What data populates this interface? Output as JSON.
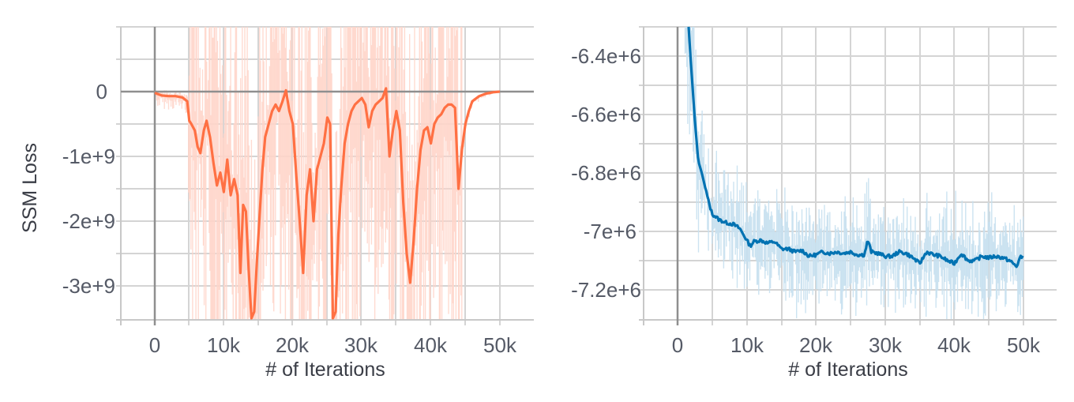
{
  "chart_data": [
    {
      "type": "line",
      "title": "",
      "xlabel": "# of Iterations",
      "ylabel": "SSM Loss",
      "xlim": [
        -5000,
        55000
      ],
      "ylim": [
        -3520000000.0,
        1000000000.0
      ],
      "x_ticks": [
        "0",
        "10k",
        "20k",
        "30k",
        "40k",
        "50k"
      ],
      "y_ticks": [
        "0",
        "-1e+9",
        "-2e+9",
        "-3e+9"
      ],
      "grid": true,
      "colors": {
        "smoothed": "#ff7043",
        "raw": "#ffd5c9"
      },
      "series": [
        {
          "name": "smoothed",
          "x_k": [
            0,
            1,
            2,
            3,
            4,
            4.7,
            5,
            5.3,
            5.8,
            6.2,
            6.6,
            7.1,
            7.5,
            8,
            8.5,
            9,
            9.5,
            10,
            10.5,
            11,
            11.5,
            12,
            12.4,
            12.8,
            13.2,
            13.6,
            14,
            14.4,
            14.8,
            15.2,
            15.6,
            16,
            16.5,
            17,
            17.5,
            18,
            18.5,
            19,
            19.5,
            20,
            20.5,
            21,
            21.5,
            22,
            22.5,
            23,
            23.5,
            24,
            24.5,
            25,
            25.4,
            25.8,
            26.2,
            26.6,
            27,
            27.5,
            28,
            28.5,
            29,
            29.5,
            30,
            30.5,
            31,
            31.5,
            32,
            32.5,
            33,
            33.5,
            34,
            34.5,
            35,
            35.5,
            36,
            36.5,
            37,
            37.5,
            38,
            38.5,
            39,
            39.5,
            40,
            40.5,
            41,
            41.5,
            42,
            42.5,
            43,
            43.5,
            44,
            44.5,
            45,
            45.5,
            46,
            47,
            48,
            49,
            50
          ],
          "y_e9": [
            -0.02,
            -0.06,
            -0.07,
            -0.07,
            -0.09,
            -0.15,
            -0.45,
            -0.5,
            -0.6,
            -0.85,
            -0.95,
            -0.6,
            -0.45,
            -0.7,
            -1.1,
            -1.45,
            -1.25,
            -1.55,
            -1.05,
            -1.6,
            -1.35,
            -1.6,
            -2.8,
            -1.75,
            -1.85,
            -2.75,
            -3.5,
            -3.4,
            -2.6,
            -1.9,
            -1.2,
            -0.7,
            -0.5,
            -0.3,
            -0.2,
            -0.3,
            -0.15,
            0.02,
            -0.3,
            -0.5,
            -1.3,
            -2.0,
            -2.8,
            -1.6,
            -1.2,
            -2.0,
            -1.2,
            -1.0,
            -0.8,
            -0.4,
            -0.5,
            -3.5,
            -3.4,
            -2.2,
            -1.5,
            -0.8,
            -0.5,
            -0.3,
            -0.2,
            -0.15,
            -0.1,
            -0.2,
            -0.55,
            -0.3,
            -0.2,
            -0.15,
            -0.1,
            0.05,
            -1.0,
            -0.6,
            -0.3,
            -0.6,
            -1.7,
            -2.5,
            -2.95,
            -2.3,
            -1.5,
            -0.9,
            -0.6,
            -0.55,
            -0.8,
            -0.5,
            -0.4,
            -0.35,
            -0.25,
            -0.2,
            -0.2,
            -0.25,
            -1.5,
            -0.9,
            -0.5,
            -0.3,
            -0.15,
            -0.07,
            -0.03,
            -0.01,
            0
          ]
        },
        {
          "name": "raw",
          "note": "highly noisy, spans full y-range between ~5k and ~44k iterations"
        }
      ]
    },
    {
      "type": "line",
      "title": "",
      "xlabel": "# of Iterations",
      "ylabel": "",
      "xlim": [
        -5000,
        55000
      ],
      "ylim": [
        -7303000.0,
        -6300000.0
      ],
      "x_ticks": [
        "0",
        "10k",
        "20k",
        "30k",
        "40k",
        "50k"
      ],
      "y_ticks": [
        "-6.4e+6",
        "-6.6e+6",
        "-6.8e+6",
        "-7e+6",
        "-7.2e+6"
      ],
      "grid": true,
      "colors": {
        "smoothed": "#0072b2",
        "raw": "#c6e0f0"
      },
      "series": [
        {
          "name": "smoothed",
          "x_k": [
            1.6,
            2.0,
            2.5,
            3.0,
            3.5,
            4.0,
            4.5,
            5,
            6,
            7,
            8,
            9,
            10,
            10.5,
            11,
            12,
            13,
            14,
            15,
            16,
            17,
            18,
            19,
            20,
            21,
            22,
            23,
            24,
            25,
            26,
            27,
            27.5,
            28,
            29,
            30,
            31,
            32,
            33,
            34,
            35,
            36,
            37,
            38,
            39,
            40,
            41,
            42,
            43,
            44,
            45,
            46,
            47,
            48,
            49,
            49.5,
            50
          ],
          "y_e6": [
            -6.3,
            -6.45,
            -6.62,
            -6.76,
            -6.8,
            -6.85,
            -6.9,
            -6.94,
            -6.96,
            -6.97,
            -6.975,
            -6.99,
            -7.03,
            -7.05,
            -7.035,
            -7.03,
            -7.04,
            -7.035,
            -7.06,
            -7.06,
            -7.07,
            -7.065,
            -7.085,
            -7.08,
            -7.07,
            -7.075,
            -7.07,
            -7.075,
            -7.07,
            -7.08,
            -7.08,
            -7.03,
            -7.07,
            -7.075,
            -7.085,
            -7.085,
            -7.07,
            -7.075,
            -7.09,
            -7.11,
            -7.07,
            -7.08,
            -7.085,
            -7.1,
            -7.11,
            -7.075,
            -7.1,
            -7.1,
            -7.085,
            -7.09,
            -7.085,
            -7.09,
            -7.1,
            -7.12,
            -7.09,
            -7.085
          ]
        },
        {
          "name": "raw",
          "note": "noisy band around smoothed curve, roughly ±0.2e6"
        }
      ]
    }
  ]
}
